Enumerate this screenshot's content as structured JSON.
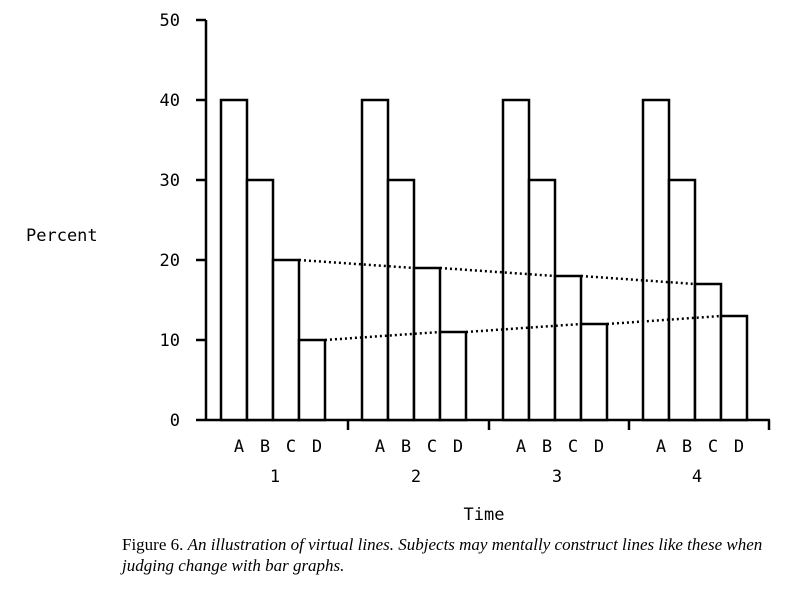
{
  "chart_data": {
    "type": "bar",
    "xlabel": "Time",
    "ylabel": "Percent",
    "ylim": [
      0,
      50
    ],
    "yticks": [
      "0",
      "10",
      "20",
      "30",
      "40",
      "50"
    ],
    "groups": [
      "1",
      "2",
      "3",
      "4"
    ],
    "bar_labels": [
      "A",
      "B",
      "C",
      "D"
    ],
    "values": {
      "1": [
        40,
        30,
        20,
        10
      ],
      "2": [
        40,
        30,
        19,
        11
      ],
      "3": [
        40,
        30,
        18,
        12
      ],
      "4": [
        40,
        30,
        17,
        13
      ]
    },
    "series": [
      {
        "values": [
          40,
          40,
          40,
          40
        ]
      },
      {
        "values": [
          30,
          30,
          30,
          30
        ]
      },
      {
        "values": [
          20,
          19,
          18,
          17
        ]
      },
      {
        "values": [
          10,
          11,
          12,
          13
        ]
      }
    ],
    "virtual_lines": [
      "C",
      "D"
    ],
    "grid": false,
    "legend": "none"
  },
  "caption": {
    "label": "Figure 6.",
    "text": "An illustration of virtual lines. Subjects may mentally construct lines like these when judging change with bar graphs."
  }
}
